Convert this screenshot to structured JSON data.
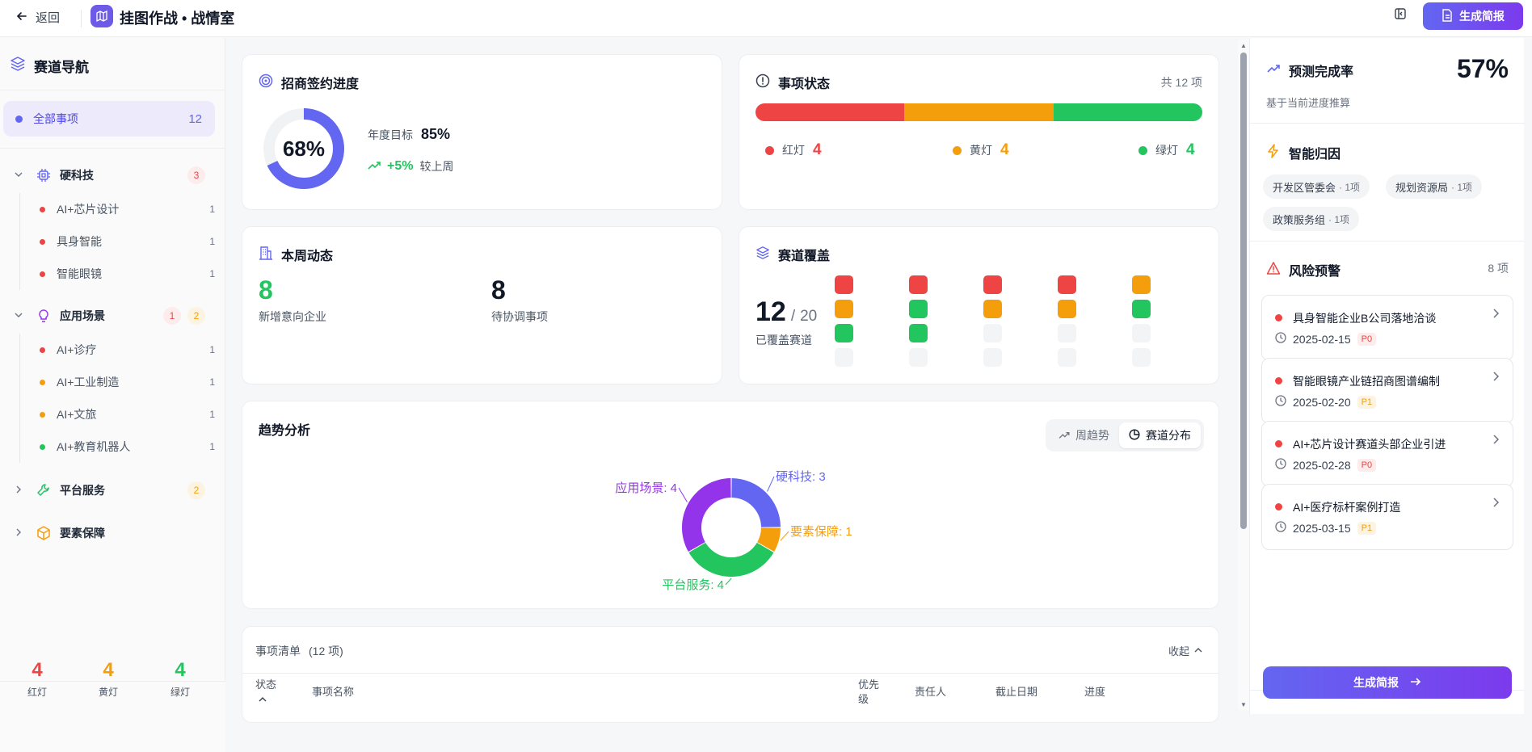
{
  "header": {
    "back_label": "返回",
    "title": "挂图作战 • 战情室",
    "generate_label": "生成简报",
    "colors": {
      "accent": "#6d5ae6"
    }
  },
  "sidebar": {
    "title": "赛道导航",
    "all": {
      "label": "全部事项",
      "count": "12"
    },
    "groups": [
      {
        "label": "硬科技",
        "red": "3",
        "icon": "chip-icon",
        "items": [
          {
            "label": "AI+芯片设计",
            "count": "1",
            "status": "red"
          },
          {
            "label": "具身智能",
            "count": "1",
            "status": "red"
          },
          {
            "label": "智能眼镜",
            "count": "1",
            "status": "red"
          }
        ]
      },
      {
        "label": "应用场景",
        "red": "1",
        "yellow": "2",
        "icon": "bulb-icon",
        "items": [
          {
            "label": "AI+诊疗",
            "count": "1",
            "status": "red"
          },
          {
            "label": "AI+工业制造",
            "count": "1",
            "status": "yellow"
          },
          {
            "label": "AI+文旅",
            "count": "1",
            "status": "yellow"
          },
          {
            "label": "AI+教育机器人",
            "count": "1",
            "status": "green"
          }
        ]
      },
      {
        "label": "平台服务",
        "yellow": "2",
        "icon": "wrench-icon"
      },
      {
        "label": "要素保障",
        "icon": "box-icon"
      }
    ],
    "footer": [
      {
        "value": "4",
        "label": "红灯"
      },
      {
        "value": "4",
        "label": "黄灯"
      },
      {
        "value": "4",
        "label": "绿灯"
      }
    ]
  },
  "signing": {
    "title": "招商签约进度",
    "progress_text": "68%",
    "progress": 0.68,
    "target_label": "年度目标",
    "target_value": "85%",
    "delta": "+5%",
    "delta_label": "较上周"
  },
  "status": {
    "title": "事项状态",
    "total": "共 12 项",
    "red": {
      "label": "红灯",
      "value": "4"
    },
    "yellow": {
      "label": "黄灯",
      "value": "4"
    },
    "green": {
      "label": "绿灯",
      "value": "4"
    },
    "colors": {
      "red": "#ef4444",
      "yellow": "#f59e0b",
      "green": "#22c55e"
    }
  },
  "weekly": {
    "title": "本周动态",
    "new_value": "8",
    "new_label": "新增意向企业",
    "pending_value": "8",
    "pending_label": "待协调事项"
  },
  "coverage": {
    "title": "赛道覆盖",
    "covered": "12",
    "total": "20",
    "label": "已覆盖赛道",
    "grid": [
      "red",
      "red",
      "red",
      "red",
      "yellow",
      "yellow",
      "green",
      "yellow",
      "yellow",
      "green",
      "green",
      "green",
      "empty",
      "empty",
      "empty",
      "empty",
      "empty",
      "empty",
      "empty",
      "empty"
    ]
  },
  "trend": {
    "title": "趋势分析",
    "tab_week": "周趋势",
    "tab_dist": "赛道分布",
    "chart_data": {
      "type": "pie",
      "donut": true,
      "labels": [
        "硬科技: 3",
        "要素保障: 1",
        "平台服务: 4",
        "应用场景: 4"
      ],
      "values": [
        3,
        1,
        4,
        4
      ],
      "colors": [
        "#6366f1",
        "#f59e0b",
        "#22c55e",
        "#9333ea"
      ]
    }
  },
  "list": {
    "title": "事项清单",
    "count": "(12 项)",
    "collapse": "收起",
    "columns": {
      "status": "状态",
      "name": "事项名称",
      "priority_a": "优先",
      "priority_b": "级",
      "owner": "责任人",
      "deadline": "截止日期",
      "progress": "进度"
    }
  },
  "forecast": {
    "title": "预测完成率",
    "value": "57%",
    "sub": "基于当前进度推算"
  },
  "attribution": {
    "title": "智能归因",
    "chips": [
      {
        "name": "开发区管委会",
        "count": "· 1项"
      },
      {
        "name": "规划资源局",
        "count": "· 1项"
      },
      {
        "name": "政策服务组",
        "count": "· 1项"
      }
    ]
  },
  "risk": {
    "title": "风险预警",
    "count": "8 项",
    "items": [
      {
        "title": "具身智能企业B公司落地洽谈",
        "date": "2025-02-15",
        "priority": "P0"
      },
      {
        "title": "智能眼镜产业链招商图谱编制",
        "date": "2025-02-20",
        "priority": "P1"
      },
      {
        "title": "AI+芯片设计赛道头部企业引进",
        "date": "2025-02-28",
        "priority": "P0"
      },
      {
        "title": "AI+医疗标杆案例打造",
        "date": "2025-03-15",
        "priority": "P1"
      }
    ]
  },
  "bottom_button": "生成简报"
}
